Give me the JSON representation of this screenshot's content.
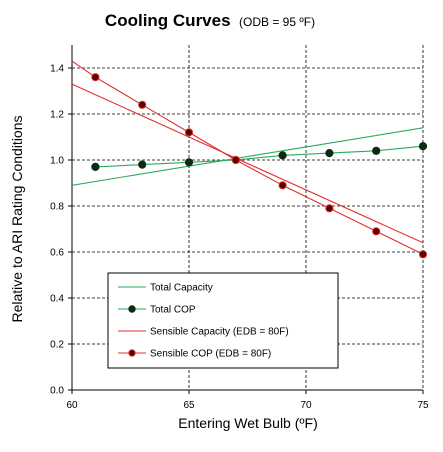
{
  "chart_data": {
    "type": "line",
    "title": "Cooling Curves",
    "subtitle": "(ODB = 95 ºF)",
    "xlabel": "Entering Wet Bulb (ºF)",
    "ylabel": "Relative to ARI Rating Conditions",
    "xlim": [
      60,
      75
    ],
    "ylim": [
      0.0,
      1.5
    ],
    "xticks": [
      "60",
      "65",
      "70",
      "75"
    ],
    "yticks": [
      "0.0",
      "0.2",
      "0.4",
      "0.6",
      "0.8",
      "1.0",
      "1.2",
      "1.4"
    ],
    "grid": "dashed",
    "legend_position": "bottom-left",
    "series": [
      {
        "name": "Total Capacity",
        "color": "#2eaa5c",
        "marker": "none",
        "x": [
          60,
          75
        ],
        "y": [
          0.89,
          1.14
        ]
      },
      {
        "name": "Total COP",
        "color": "#2eaa5c",
        "marker": "dot",
        "x": [
          61,
          63,
          65,
          67,
          69,
          71,
          73,
          75
        ],
        "y": [
          0.97,
          0.98,
          0.99,
          1.0,
          1.02,
          1.03,
          1.04,
          1.06
        ]
      },
      {
        "name": "Sensible Capacity (EDB = 80F)",
        "color": "#e03030",
        "marker": "none",
        "x": [
          60,
          75
        ],
        "y": [
          1.33,
          0.64
        ]
      },
      {
        "name": "Sensible COP (EDB = 80F)",
        "color": "#e03030",
        "marker": "dot",
        "x": [
          60,
          61,
          63,
          65,
          67,
          69,
          71,
          73,
          75
        ],
        "y": [
          1.43,
          1.36,
          1.24,
          1.12,
          1.0,
          0.89,
          0.79,
          0.69,
          0.59
        ]
      }
    ]
  }
}
